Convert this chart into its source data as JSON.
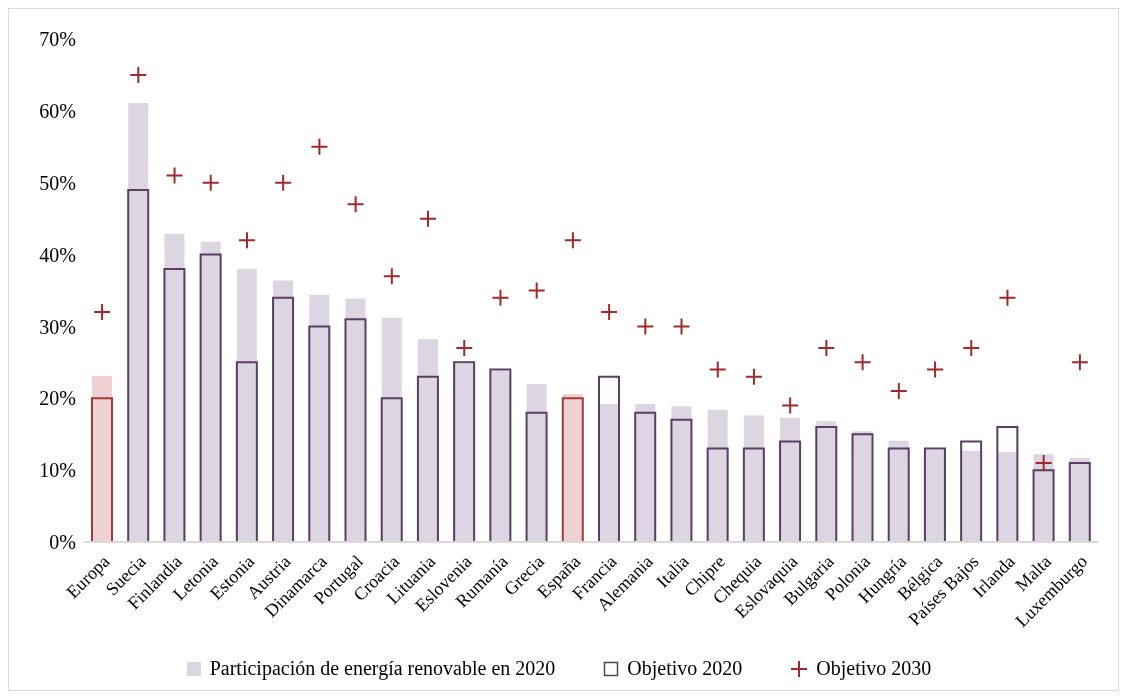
{
  "chart_data": {
    "type": "bar",
    "categories": [
      "Europa",
      "Suecia",
      "Finlandia",
      "Letonia",
      "Estonia",
      "Austria",
      "Dinamarca",
      "Portugal",
      "Croacia",
      "Lituania",
      "Eslovenia",
      "Rumanía",
      "Grecia",
      "España",
      "Francia",
      "Alemania",
      "Italia",
      "Chipre",
      "Chequia",
      "Eslovaquia",
      "Bulgaria",
      "Polonia",
      "Hungría",
      "Bélgica",
      "Países Bajos",
      "Irlanda",
      "Malta",
      "Luxemburgo"
    ],
    "series": [
      {
        "name": "Participación de energía renovable en 2020",
        "color": "#ddd5e2",
        "colors": [
          "#efd0d3",
          "#ddd5e2",
          "#ddd5e2",
          "#ddd5e2",
          "#ddd5e2",
          "#ddd5e2",
          "#ddd5e2",
          "#ddd5e2",
          "#ddd5e2",
          "#ddd5e2",
          "#ddd5e2",
          "#ddd5e2",
          "#ddd5e2",
          "#efd0d3",
          "#ddd5e2",
          "#ddd5e2",
          "#ddd5e2",
          "#ddd5e2",
          "#ddd5e2",
          "#ddd5e2",
          "#ddd5e2",
          "#ddd5e2",
          "#ddd5e2",
          "#ddd5e2",
          "#ddd5e2",
          "#ddd5e2",
          "#ddd5e2",
          "#ddd5e2"
        ],
        "values": [
          23.1,
          61.1,
          42.9,
          41.8,
          38.0,
          36.4,
          34.4,
          33.9,
          31.2,
          28.2,
          24.8,
          23.8,
          22.0,
          20.6,
          19.2,
          19.2,
          18.9,
          18.4,
          17.6,
          17.3,
          16.8,
          15.4,
          14.1,
          12.8,
          12.7,
          12.5,
          12.2,
          11.7
        ]
      },
      {
        "name": "Objetivo 2020",
        "color": "#5a3e63",
        "colors": [
          "#a33a3a",
          "#5a3e63",
          "#5a3e63",
          "#5a3e63",
          "#5a3e63",
          "#5a3e63",
          "#5a3e63",
          "#5a3e63",
          "#5a3e63",
          "#5a3e63",
          "#5a3e63",
          "#5a3e63",
          "#5a3e63",
          "#a33a3a",
          "#5a3e63",
          "#5a3e63",
          "#5a3e63",
          "#5a3e63",
          "#5a3e63",
          "#5a3e63",
          "#5a3e63",
          "#5a3e63",
          "#5a3e63",
          "#5a3e63",
          "#5a3e63",
          "#5a3e63",
          "#5a3e63",
          "#5a3e63"
        ],
        "values": [
          20,
          49,
          38,
          40,
          25,
          34,
          30,
          31,
          20,
          23,
          25,
          24,
          18,
          20,
          23,
          18,
          17,
          13,
          13,
          14,
          16,
          15,
          13,
          13,
          14,
          16,
          10,
          11
        ]
      },
      {
        "name": "Objetivo 2030",
        "type": "scatter",
        "marker": "cross",
        "color": "#9e2a2b",
        "values": [
          32,
          65,
          51,
          50,
          42,
          50,
          55,
          47,
          37,
          45,
          27,
          34,
          35,
          42,
          32,
          30,
          30,
          24,
          23,
          19,
          27,
          25,
          21,
          24,
          27,
          34,
          11,
          25
        ]
      }
    ],
    "ylim": [
      0,
      70
    ],
    "yticks": [
      {
        "value": 0,
        "label": "0%"
      },
      {
        "value": 10,
        "label": "10%"
      },
      {
        "value": 20,
        "label": "20%"
      },
      {
        "value": 30,
        "label": "30%"
      },
      {
        "value": 40,
        "label": "40%"
      },
      {
        "value": 50,
        "label": "50%"
      },
      {
        "value": 60,
        "label": "60%"
      },
      {
        "value": 70,
        "label": "70%"
      }
    ],
    "legend": "bottom"
  }
}
